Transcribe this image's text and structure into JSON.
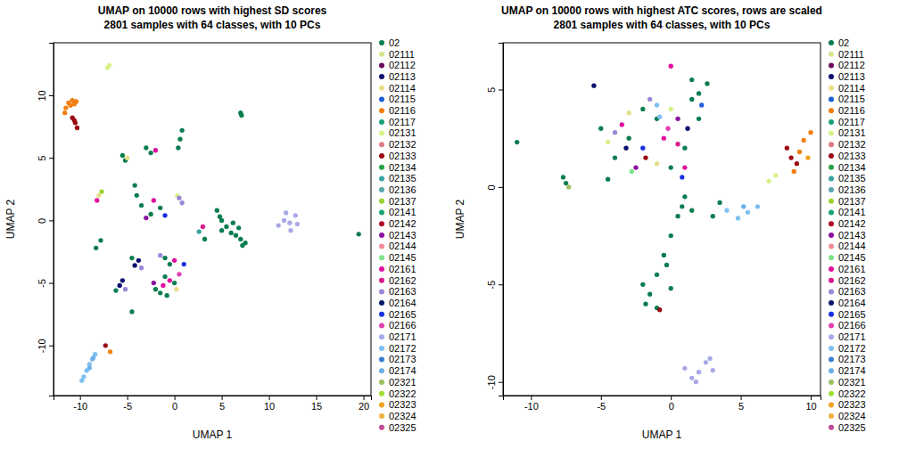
{
  "chart_data": [
    {
      "type": "scatter",
      "title": "UMAP on 10000 rows with highest SD scores",
      "subtitle": "2801 samples with 64 classes, with 10 PCs",
      "x_label": "UMAP 1",
      "y_label": "UMAP 2",
      "xlim": [
        -12.8,
        20.8
      ],
      "ylim": [
        -14,
        14.2
      ],
      "xticks": [
        -10,
        -5,
        0,
        5,
        10,
        15,
        20
      ],
      "yticks": [
        -10,
        -5,
        0,
        5,
        10
      ],
      "grid": false,
      "legend": "right",
      "marker": "circle",
      "series": [
        {
          "name": "02",
          "color": "#0a7d4f",
          "x": [
            7.0,
            7.1,
            0.4,
            0.6,
            0.8,
            -3,
            -2.5,
            -5.5,
            -5.2,
            -4.2,
            -4.0,
            -3.5,
            -2.5,
            -1.5,
            4.5,
            5,
            5.5,
            6,
            6.5,
            7,
            7.5,
            5,
            4.8,
            6.2,
            7.2,
            6.8,
            19.5,
            3.2,
            -1,
            -0.5,
            -4.5,
            -6.2,
            -1.5,
            -0.8,
            -2,
            0,
            -1,
            -4.5,
            -7.8,
            -8.3
          ],
          "y": [
            8.6,
            8.4,
            5.8,
            6.5,
            7.2,
            5.8,
            5.4,
            5.2,
            4.8,
            2.8,
            2.0,
            1.2,
            0.5,
            1.0,
            0.8,
            0,
            -0.5,
            -1,
            -1.2,
            -1.5,
            -1.8,
            -0.8,
            0.3,
            -0.2,
            -2.0,
            -0.6,
            -1.1,
            -1.5,
            -3.0,
            -3.5,
            -3,
            -5.6,
            -5.8,
            -6.0,
            -5.5,
            -5.0,
            -4.5,
            -7.3,
            -1.6,
            -2.2
          ]
        },
        {
          "name": "02111",
          "color": "#d8e58a",
          "x": [],
          "y": []
        },
        {
          "name": "02112",
          "color": "#6a0d5c",
          "x": [],
          "y": []
        },
        {
          "name": "02113",
          "color": "#0c0f6e",
          "x": [
            -4.2,
            -3.8,
            -5.8,
            -5.5
          ],
          "y": [
            -3.6,
            -3.2,
            -5.2,
            -4.8
          ]
        },
        {
          "name": "02114",
          "color": "#e6e08a",
          "x": [
            -5.0,
            -8.0,
            0.2
          ],
          "y": [
            5.0,
            2.0,
            -5.5
          ]
        },
        {
          "name": "02115",
          "color": "#1f5fd6",
          "x": [],
          "y": []
        },
        {
          "name": "02116",
          "color": "#f07f10",
          "x": [
            -11.5,
            -11.2,
            -10.8,
            -10.4,
            -11.6,
            -11.0,
            -10.6,
            -6.8
          ],
          "y": [
            9.0,
            9.4,
            9.6,
            9.5,
            8.6,
            9.2,
            9.3,
            -10.5
          ]
        },
        {
          "name": "02117",
          "color": "#1aa07a",
          "x": [],
          "y": []
        },
        {
          "name": "02131",
          "color": "#d7f28a",
          "x": [
            -7.1,
            -6.9,
            0.3
          ],
          "y": [
            12.2,
            12.4,
            2.0
          ]
        },
        {
          "name": "02132",
          "color": "#e07a86",
          "x": [],
          "y": []
        },
        {
          "name": "02133",
          "color": "#9b0a12",
          "x": [
            -10.8,
            -10.5,
            -10.3,
            -10.6,
            -7.3
          ],
          "y": [
            8.2,
            7.8,
            7.4,
            8.0,
            -10.0
          ]
        },
        {
          "name": "02134",
          "color": "#2aa14a",
          "x": [],
          "y": []
        },
        {
          "name": "02135",
          "color": "#39a3a0",
          "x": [
            2.6
          ],
          "y": [
            -0.9
          ]
        },
        {
          "name": "02136",
          "color": "#5aa6a8",
          "x": [],
          "y": []
        },
        {
          "name": "02137",
          "color": "#9bd12e",
          "x": [
            -7.7
          ],
          "y": [
            2.3
          ]
        },
        {
          "name": "02141",
          "color": "#19a37a",
          "x": [],
          "y": []
        },
        {
          "name": "02142",
          "color": "#b30b2a",
          "x": [],
          "y": []
        },
        {
          "name": "02143",
          "color": "#8b0fa0",
          "x": [
            -3,
            -2.2
          ],
          "y": [
            0.2,
            -5.0
          ]
        },
        {
          "name": "02144",
          "color": "#f08a9a",
          "x": [],
          "y": []
        },
        {
          "name": "02145",
          "color": "#7de38a",
          "x": [],
          "y": []
        },
        {
          "name": "02161",
          "color": "#e010a0",
          "x": [
            -2,
            -8.2,
            -2.2,
            0,
            -1.2,
            -0.5
          ],
          "y": [
            5.6,
            1.6,
            1.6,
            -3.2,
            -5.2,
            -4.8
          ]
        },
        {
          "name": "02162",
          "color": "#d81b8a",
          "x": [
            3
          ],
          "y": [
            -0.5
          ]
        },
        {
          "name": "02163",
          "color": "#9b87d8",
          "x": [
            0.5,
            0.8,
            -1.5,
            -3.5,
            -5.2
          ],
          "y": [
            1.8,
            1.4,
            -2.8,
            -3.8,
            -5.5
          ]
        },
        {
          "name": "02164",
          "color": "#0a1a6a",
          "x": [],
          "y": []
        },
        {
          "name": "02165",
          "color": "#1a2fe0",
          "x": [
            -1,
            1
          ],
          "y": [
            0.4,
            -3.5
          ]
        },
        {
          "name": "02166",
          "color": "#e040b0",
          "x": [
            0.5
          ],
          "y": [
            -4.3
          ]
        },
        {
          "name": "02171",
          "color": "#a8a8e8",
          "x": [
            11,
            11.6,
            12.2,
            12.8,
            12.3,
            13.0,
            11.8
          ],
          "y": [
            -0.4,
            0,
            -0.2,
            0.4,
            -0.8,
            -0.3,
            0.6
          ]
        },
        {
          "name": "02172",
          "color": "#80c0f0",
          "x": [
            -9.6,
            -9.3,
            -9,
            -8.7,
            -8.4,
            -9.8
          ],
          "y": [
            -12.5,
            -12,
            -11.5,
            -11.1,
            -10.7,
            -12.8
          ]
        },
        {
          "name": "02173",
          "color": "#3a7fd0",
          "x": [],
          "y": []
        },
        {
          "name": "02174",
          "color": "#6ab0e8",
          "x": [
            -9.0,
            -8.6
          ],
          "y": [
            -11.8,
            -11.0
          ]
        },
        {
          "name": "02321",
          "color": "#a0c060",
          "x": [],
          "y": []
        },
        {
          "name": "02322",
          "color": "#a0e030",
          "x": [],
          "y": []
        },
        {
          "name": "02323",
          "color": "#f0a020",
          "x": [],
          "y": []
        },
        {
          "name": "02324",
          "color": "#f0b040",
          "x": [],
          "y": []
        },
        {
          "name": "02325",
          "color": "#c04a9a",
          "x": [],
          "y": []
        }
      ]
    },
    {
      "type": "scatter",
      "title": "UMAP on 10000 rows with highest ATC scores, rows are scaled",
      "subtitle": "2801 samples with 64 classes, with 10 PCs",
      "x_label": "UMAP 1",
      "y_label": "UMAP 2",
      "xlim": [
        -12.0,
        10.7
      ],
      "ylim": [
        -10.7,
        7.4
      ],
      "xticks": [
        -10,
        -5,
        0,
        5,
        10
      ],
      "yticks": [
        -10,
        -5,
        0,
        5
      ],
      "grid": false,
      "legend": "right",
      "marker": "circle",
      "series": [
        {
          "name": "02",
          "color": "#0a7d4f",
          "x": [
            -5,
            -3,
            -1,
            1,
            0,
            -4,
            -2,
            1.5,
            2,
            1.5,
            2,
            2.6,
            1,
            0.5,
            0,
            -0.5,
            -1,
            -1.5,
            -1,
            0,
            -2,
            0.8,
            1.5,
            -0.3,
            -1.8,
            3,
            3.5,
            -11,
            -7.5,
            -7.7,
            -4.5
          ],
          "y": [
            3,
            2.5,
            3.5,
            2,
            1,
            1.5,
            4,
            4.5,
            3.5,
            5.5,
            4.8,
            5.3,
            -0.5,
            -1.5,
            -2.5,
            -3.5,
            -4.5,
            -5.5,
            -6.2,
            -5.2,
            -5,
            -1,
            -1.2,
            -4.0,
            -6.0,
            -1.5,
            -0.8,
            2.3,
            0.2,
            0.5,
            0.4
          ]
        },
        {
          "name": "02111",
          "color": "#d8e58a",
          "x": [],
          "y": []
        },
        {
          "name": "02112",
          "color": "#6a0d5c",
          "x": [],
          "y": []
        },
        {
          "name": "02113",
          "color": "#0c0f6e",
          "x": [
            -3.2,
            1.2,
            -5.5
          ],
          "y": [
            2.0,
            3,
            5.2
          ]
        },
        {
          "name": "02114",
          "color": "#e6e08a",
          "x": [
            -3,
            -1
          ],
          "y": [
            3.8,
            1.2
          ]
        },
        {
          "name": "02115",
          "color": "#1f5fd6",
          "x": [
            2.2
          ],
          "y": [
            4.2
          ]
        },
        {
          "name": "02116",
          "color": "#f07f10",
          "x": [
            8.8,
            9.5,
            10,
            9.2
          ],
          "y": [
            0.8,
            2.4,
            2.8,
            1.8
          ]
        },
        {
          "name": "02117",
          "color": "#1aa07a",
          "x": [],
          "y": []
        },
        {
          "name": "02131",
          "color": "#d7f28a",
          "x": [
            -4.5,
            0,
            7.5,
            7.0
          ],
          "y": [
            2.3,
            4,
            0.6,
            0.3
          ]
        },
        {
          "name": "02132",
          "color": "#e07a86",
          "x": [],
          "y": []
        },
        {
          "name": "02133",
          "color": "#9b0a12",
          "x": [
            -1.8,
            -0.8,
            8.6,
            9.0,
            8.3
          ],
          "y": [
            1.5,
            -6.3,
            1.5,
            1.2,
            2.0
          ]
        },
        {
          "name": "02134",
          "color": "#2aa14a",
          "x": [],
          "y": []
        },
        {
          "name": "02135",
          "color": "#39a3a0",
          "x": [],
          "y": []
        },
        {
          "name": "02136",
          "color": "#5aa6a8",
          "x": [],
          "y": []
        },
        {
          "name": "02137",
          "color": "#9bd12e",
          "x": [],
          "y": []
        },
        {
          "name": "02141",
          "color": "#19a37a",
          "x": [],
          "y": []
        },
        {
          "name": "02142",
          "color": "#b30b2a",
          "x": [],
          "y": []
        },
        {
          "name": "02143",
          "color": "#8b0fa0",
          "x": [
            -2.5,
            0.5
          ],
          "y": [
            1.0,
            3.5
          ]
        },
        {
          "name": "02144",
          "color": "#f08a9a",
          "x": [],
          "y": []
        },
        {
          "name": "02145",
          "color": "#7de38a",
          "x": [
            -2.8
          ],
          "y": [
            0.8
          ]
        },
        {
          "name": "02161",
          "color": "#e010a0",
          "x": [
            -3.5,
            -0.5,
            1,
            0
          ],
          "y": [
            3.2,
            2.5,
            1,
            6.2
          ]
        },
        {
          "name": "02162",
          "color": "#d81b8a",
          "x": [
            0.5
          ],
          "y": [
            2.2
          ]
        },
        {
          "name": "02163",
          "color": "#9b87d8",
          "x": [
            -1.5,
            -4
          ],
          "y": [
            4.5,
            2.8
          ]
        },
        {
          "name": "02164",
          "color": "#0a1a6a",
          "x": [],
          "y": []
        },
        {
          "name": "02165",
          "color": "#1a2fe0",
          "x": [
            -2,
            0.8
          ],
          "y": [
            2,
            0.5
          ]
        },
        {
          "name": "02166",
          "color": "#e040b0",
          "x": [
            -0.2
          ],
          "y": [
            3.0
          ]
        },
        {
          "name": "02171",
          "color": "#a8a8e8",
          "x": [
            1,
            1.5,
            2,
            2.5,
            3,
            1.8,
            2.8
          ],
          "y": [
            -9.3,
            -9.8,
            -9.5,
            -9.0,
            -9.4,
            -10,
            -8.8
          ]
        },
        {
          "name": "02172",
          "color": "#80c0f0",
          "x": [
            -1.0,
            -0.8,
            4,
            4.8,
            5.5,
            6.2
          ],
          "y": [
            4.2,
            3.6,
            -1.2,
            -1.6,
            -1.3,
            -1.0
          ]
        },
        {
          "name": "02173",
          "color": "#3a7fd0",
          "x": [],
          "y": []
        },
        {
          "name": "02174",
          "color": "#6ab0e8",
          "x": [
            5.2
          ],
          "y": [
            -1.0
          ]
        },
        {
          "name": "02321",
          "color": "#a0c060",
          "x": [
            -7.3
          ],
          "y": [
            0.0
          ]
        },
        {
          "name": "02322",
          "color": "#a0e030",
          "x": [],
          "y": []
        },
        {
          "name": "02323",
          "color": "#f0a020",
          "x": [
            9.8
          ],
          "y": [
            1.5
          ]
        },
        {
          "name": "02324",
          "color": "#f0b040",
          "x": [],
          "y": []
        },
        {
          "name": "02325",
          "color": "#c04a9a",
          "x": [],
          "y": []
        }
      ]
    }
  ]
}
